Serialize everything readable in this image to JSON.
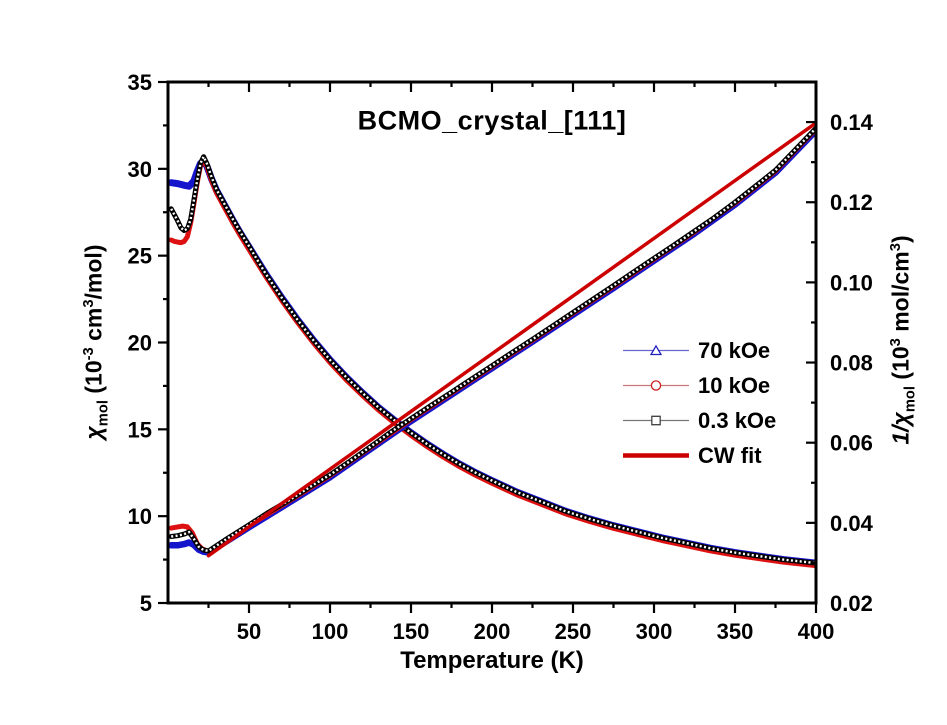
{
  "figure": {
    "title": "BCMO_crystal_[111]",
    "background": "#ffffff"
  },
  "axes": {
    "bottom": {
      "label": "Temperature (K)",
      "range": [
        0,
        400
      ],
      "major_values": [
        50,
        100,
        150,
        200,
        250,
        300,
        350,
        400
      ],
      "major_labels": [
        "50",
        "100",
        "150",
        "200",
        "250",
        "300",
        "350",
        "400"
      ],
      "minor_values": [
        25,
        75,
        125,
        175,
        225,
        275,
        325,
        375
      ]
    },
    "left": {
      "label_parts": {
        "pre": "χ",
        "sub": "mol",
        "m1": " (10",
        "e1": "-3",
        "m2": " cm",
        "e2": "3",
        "end": "/mol)"
      },
      "range": [
        5,
        35
      ],
      "major_values": [
        35,
        30,
        25,
        20,
        15,
        10,
        5
      ],
      "major_labels": [
        "35",
        "30",
        "25",
        "20",
        "15",
        "10",
        "5"
      ],
      "minor_values": [
        7.5,
        12.5,
        17.5,
        22.5,
        27.5,
        32.5
      ]
    },
    "right": {
      "label_parts": {
        "pre": "1/χ",
        "sub": "mol",
        "m1": " (10",
        "e1": "3",
        "m2": " mol/cm",
        "e2": "3",
        "end": ")"
      },
      "range": [
        0.02,
        0.15
      ],
      "major_values": [
        0.14,
        0.12,
        0.1,
        0.08,
        0.06,
        0.04,
        0.02
      ],
      "major_labels": [
        "0.14",
        "0.12",
        "0.10",
        "0.08",
        "0.06",
        "0.04",
        "0.02"
      ],
      "minor_values": [
        0.03,
        0.05,
        0.07,
        0.09,
        0.11,
        0.13
      ]
    }
  },
  "legend": {
    "items": [
      {
        "label": "70 kOe",
        "marker": "triangle",
        "line_color": "#6666cc",
        "marker_color": "#2222bb",
        "line_width": 1.3
      },
      {
        "label": "10 kOe",
        "marker": "circle",
        "line_color": "#cc7777",
        "marker_color": "#cc2222",
        "line_width": 1.3
      },
      {
        "label": "0.3 kOe",
        "marker": "square",
        "line_color": "#777777",
        "marker_color": "#444444",
        "line_width": 1.3
      },
      {
        "label": "CW fit",
        "marker": "line",
        "line_color": "#cc0000",
        "marker_color": "#cc0000",
        "line_width": 4.5
      }
    ]
  },
  "chart_data": {
    "type": "line",
    "title": "BCMO_crystal_[111]",
    "xlabel": "Temperature (K)",
    "ylabel_left": "chi_mol (10^-3 cm^3/mol)",
    "ylabel_right": "1/chi_mol (10^3 mol/cm^3)",
    "xlim": [
      0,
      400
    ],
    "ylim_left": [
      5,
      35
    ],
    "ylim_right": [
      0.02,
      0.15
    ],
    "grid": false,
    "legend_position": "center-right",
    "series": [
      {
        "name": "chi_70kOe",
        "axis": "left",
        "color": "#1515cc",
        "width": 7,
        "markers": false,
        "points": [
          [
            2,
            29.2
          ],
          [
            6,
            29.15
          ],
          [
            10,
            29.05
          ],
          [
            13,
            29.0
          ],
          [
            16,
            29.3
          ],
          [
            18,
            29.85
          ],
          [
            20,
            30.3
          ],
          [
            22,
            30.45
          ],
          [
            24,
            30.15
          ],
          [
            27,
            29.4
          ],
          [
            30,
            28.75
          ],
          [
            35,
            27.9
          ],
          [
            40,
            27.05
          ],
          [
            45,
            26.25
          ],
          [
            50,
            25.5
          ],
          [
            55,
            24.75
          ],
          [
            60,
            24.0
          ],
          [
            65,
            23.3
          ],
          [
            70,
            22.6
          ],
          [
            75,
            21.95
          ],
          [
            80,
            21.3
          ],
          [
            85,
            20.7
          ],
          [
            90,
            20.1
          ],
          [
            95,
            19.55
          ],
          [
            100,
            19.0
          ],
          [
            110,
            18.0
          ],
          [
            120,
            17.1
          ],
          [
            130,
            16.25
          ],
          [
            140,
            15.5
          ],
          [
            150,
            14.8
          ],
          [
            160,
            14.15
          ],
          [
            170,
            13.55
          ],
          [
            180,
            13.0
          ],
          [
            190,
            12.5
          ],
          [
            200,
            12.05
          ],
          [
            215,
            11.4
          ],
          [
            230,
            10.85
          ],
          [
            245,
            10.3
          ],
          [
            260,
            9.85
          ],
          [
            275,
            9.45
          ],
          [
            290,
            9.1
          ],
          [
            305,
            8.75
          ],
          [
            320,
            8.45
          ],
          [
            335,
            8.15
          ],
          [
            350,
            7.9
          ],
          [
            365,
            7.7
          ],
          [
            380,
            7.5
          ],
          [
            400,
            7.3
          ]
        ]
      },
      {
        "name": "chi_10kOe",
        "axis": "left",
        "color": "#dd1111",
        "width": 5,
        "markers": false,
        "points": [
          [
            2,
            25.9
          ],
          [
            4,
            25.82
          ],
          [
            6,
            25.78
          ],
          [
            8,
            25.75
          ],
          [
            10,
            25.82
          ],
          [
            12,
            26.1
          ],
          [
            14,
            26.9
          ],
          [
            16,
            28.0
          ],
          [
            18,
            29.2
          ],
          [
            20,
            30.15
          ],
          [
            22,
            30.55
          ],
          [
            24,
            30.15
          ],
          [
            27,
            29.3
          ],
          [
            30,
            28.6
          ],
          [
            35,
            27.75
          ],
          [
            40,
            26.9
          ],
          [
            45,
            26.1
          ],
          [
            50,
            25.35
          ],
          [
            60,
            23.85
          ],
          [
            70,
            22.45
          ],
          [
            80,
            21.15
          ],
          [
            90,
            19.95
          ],
          [
            100,
            18.85
          ],
          [
            110,
            17.85
          ],
          [
            120,
            16.95
          ],
          [
            130,
            16.1
          ],
          [
            140,
            15.35
          ],
          [
            150,
            14.65
          ],
          [
            160,
            14.0
          ],
          [
            170,
            13.4
          ],
          [
            180,
            12.85
          ],
          [
            190,
            12.35
          ],
          [
            200,
            11.9
          ],
          [
            215,
            11.25
          ],
          [
            230,
            10.7
          ],
          [
            245,
            10.15
          ],
          [
            260,
            9.7
          ],
          [
            275,
            9.3
          ],
          [
            290,
            8.95
          ],
          [
            305,
            8.6
          ],
          [
            320,
            8.3
          ],
          [
            335,
            8.0
          ],
          [
            350,
            7.75
          ],
          [
            365,
            7.55
          ],
          [
            380,
            7.35
          ],
          [
            400,
            7.15
          ]
        ]
      },
      {
        "name": "chi_0.3kOe",
        "axis": "left",
        "color": "#000000",
        "width": 5,
        "markers": true,
        "points": [
          [
            2,
            27.7
          ],
          [
            4,
            27.35
          ],
          [
            6,
            27.0
          ],
          [
            8,
            26.6
          ],
          [
            10,
            26.45
          ],
          [
            12,
            26.55
          ],
          [
            14,
            27.1
          ],
          [
            16,
            28.2
          ],
          [
            18,
            29.35
          ],
          [
            20,
            30.3
          ],
          [
            22,
            30.7
          ],
          [
            24,
            30.3
          ],
          [
            27,
            29.5
          ],
          [
            30,
            28.8
          ],
          [
            35,
            27.95
          ],
          [
            40,
            27.1
          ],
          [
            45,
            26.3
          ],
          [
            50,
            25.55
          ],
          [
            60,
            24.0
          ],
          [
            70,
            22.6
          ],
          [
            80,
            21.3
          ],
          [
            90,
            20.1
          ],
          [
            100,
            19.0
          ],
          [
            110,
            18.0
          ],
          [
            120,
            17.1
          ],
          [
            130,
            16.25
          ],
          [
            140,
            15.5
          ],
          [
            150,
            14.8
          ],
          [
            160,
            14.15
          ],
          [
            170,
            13.55
          ],
          [
            180,
            13.0
          ],
          [
            190,
            12.5
          ],
          [
            200,
            12.05
          ],
          [
            215,
            11.4
          ],
          [
            230,
            10.85
          ],
          [
            245,
            10.3
          ],
          [
            260,
            9.85
          ],
          [
            275,
            9.45
          ],
          [
            290,
            9.1
          ],
          [
            305,
            8.75
          ],
          [
            320,
            8.45
          ],
          [
            335,
            8.15
          ],
          [
            350,
            7.9
          ],
          [
            365,
            7.7
          ],
          [
            380,
            7.5
          ],
          [
            400,
            7.3
          ]
        ]
      },
      {
        "name": "invchi_70kOe",
        "axis": "right",
        "color": "#1515cc",
        "width": 6.5,
        "markers": false,
        "points": [
          [
            2,
            0.0344
          ],
          [
            6,
            0.0344
          ],
          [
            10,
            0.0347
          ],
          [
            13,
            0.0351
          ],
          [
            16,
            0.0345
          ],
          [
            19,
            0.0333
          ],
          [
            22,
            0.0328
          ],
          [
            25,
            0.0326
          ],
          [
            37,
            0.0356
          ],
          [
            50,
            0.0389
          ],
          [
            75,
            0.0451
          ],
          [
            100,
            0.0514
          ],
          [
            125,
            0.0584
          ],
          [
            150,
            0.0654
          ],
          [
            175,
            0.072
          ],
          [
            200,
            0.0786
          ],
          [
            225,
            0.0852
          ],
          [
            250,
            0.0919
          ],
          [
            275,
            0.0986
          ],
          [
            300,
            0.1054
          ],
          [
            325,
            0.1122
          ],
          [
            350,
            0.1194
          ],
          [
            375,
            0.1274
          ],
          [
            400,
            0.1379
          ]
        ]
      },
      {
        "name": "invchi_10kOe",
        "axis": "right",
        "color": "#dd1111",
        "width": 5,
        "markers": false,
        "points": [
          [
            2,
            0.0387
          ],
          [
            6,
            0.039
          ],
          [
            9,
            0.0392
          ],
          [
            12,
            0.039
          ],
          [
            15,
            0.0375
          ],
          [
            18,
            0.0348
          ],
          [
            21,
            0.0335
          ],
          [
            25,
            0.0329
          ],
          [
            50,
            0.0393
          ],
          [
            75,
            0.0455
          ],
          [
            100,
            0.0518
          ],
          [
            125,
            0.0588
          ],
          [
            150,
            0.0658
          ],
          [
            175,
            0.0724
          ],
          [
            200,
            0.079
          ],
          [
            225,
            0.0856
          ],
          [
            250,
            0.0923
          ],
          [
            275,
            0.099
          ],
          [
            300,
            0.1058
          ],
          [
            325,
            0.1126
          ],
          [
            350,
            0.1198
          ],
          [
            375,
            0.1278
          ],
          [
            400,
            0.1383
          ]
        ]
      },
      {
        "name": "invchi_0.3kOe",
        "axis": "right",
        "color": "#000000",
        "width": 5,
        "markers": true,
        "points": [
          [
            2,
            0.0366
          ],
          [
            6,
            0.0368
          ],
          [
            10,
            0.0372
          ],
          [
            13,
            0.0377
          ],
          [
            16,
            0.036
          ],
          [
            19,
            0.034
          ],
          [
            22,
            0.0332
          ],
          [
            25,
            0.033
          ],
          [
            37,
            0.0362
          ],
          [
            50,
            0.0395
          ],
          [
            62,
            0.0426
          ],
          [
            75,
            0.0457
          ],
          [
            87,
            0.0488
          ],
          [
            100,
            0.052
          ],
          [
            112,
            0.0553
          ],
          [
            125,
            0.059
          ],
          [
            137,
            0.0625
          ],
          [
            150,
            0.066
          ],
          [
            162,
            0.0692
          ],
          [
            175,
            0.0726
          ],
          [
            187,
            0.0758
          ],
          [
            200,
            0.0792
          ],
          [
            212,
            0.0824
          ],
          [
            225,
            0.0858
          ],
          [
            237,
            0.089
          ],
          [
            250,
            0.0925
          ],
          [
            262,
            0.0957
          ],
          [
            275,
            0.0992
          ],
          [
            287,
            0.1025
          ],
          [
            300,
            0.106
          ],
          [
            312,
            0.1092
          ],
          [
            325,
            0.1128
          ],
          [
            337,
            0.1161
          ],
          [
            350,
            0.12
          ],
          [
            362,
            0.1238
          ],
          [
            375,
            0.128
          ],
          [
            387,
            0.133
          ],
          [
            400,
            0.1385
          ]
        ]
      },
      {
        "name": "cw_fit",
        "axis": "right",
        "color": "#cc0000",
        "width": 3.5,
        "markers": false,
        "points": [
          [
            25,
            0.0318
          ],
          [
            400,
            0.1398
          ]
        ]
      }
    ]
  }
}
